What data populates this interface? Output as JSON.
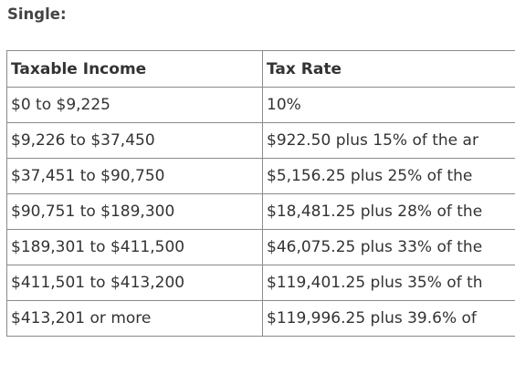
{
  "heading": "Single:",
  "table": {
    "headers": [
      "Taxable Income",
      "Tax Rate"
    ],
    "rows": [
      [
        "$0 to $9,225",
        "10%"
      ],
      [
        "$9,226 to $37,450",
        "$922.50 plus 15% of the ar"
      ],
      [
        "$37,451 to $90,750",
        "$5,156.25 plus 25% of the"
      ],
      [
        "$90,751 to $189,300",
        "$18,481.25 plus 28% of the"
      ],
      [
        "$189,301 to $411,500",
        "$46,075.25 plus 33% of the"
      ],
      [
        "$411,501 to $413,200",
        "$119,401.25 plus 35% of th"
      ],
      [
        "$413,201 or more",
        "$119,996.25 plus 39.6% of"
      ]
    ]
  }
}
